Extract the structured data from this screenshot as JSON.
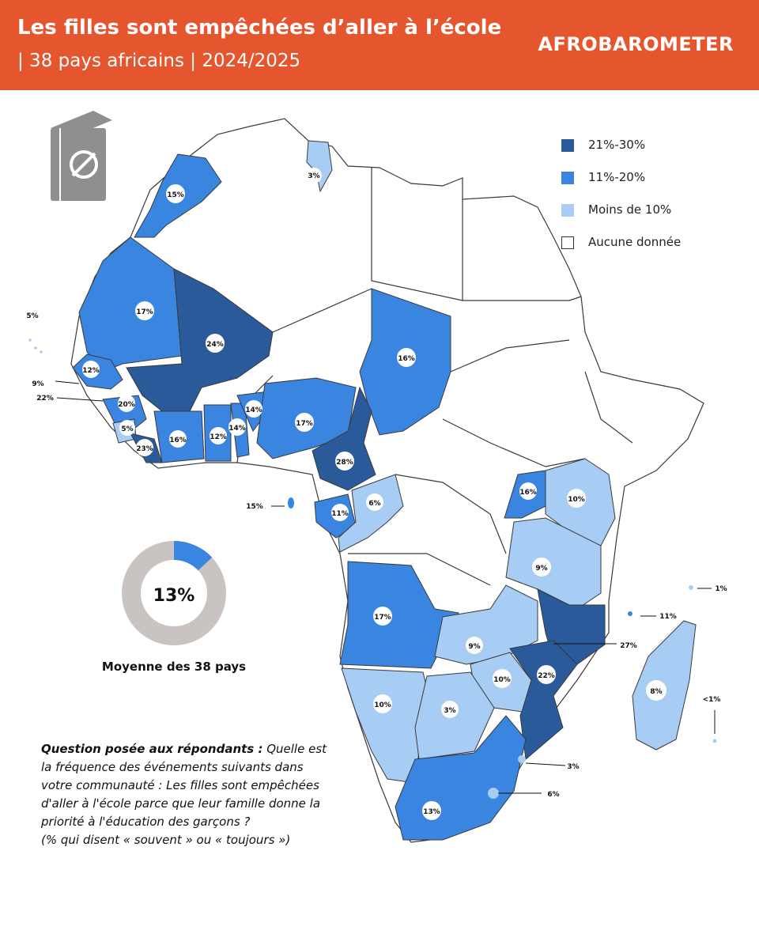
{
  "header": {
    "title": "Les filles sont empêchées d’aller à l’école",
    "subtitle": "| 38 pays africains | 2024/2025",
    "brand": "AFROBAROMETER"
  },
  "colors": {
    "header_bg": "#e6562e",
    "high": "#2a5a9a",
    "mid": "#3a85e0",
    "low": "#a7cdf5",
    "none": "#ffffff",
    "donut_rest": "#c9c3c1",
    "icon": "#8f8f8f"
  },
  "legend": {
    "items": [
      {
        "label": "21%-30%",
        "key": "high"
      },
      {
        "label": "11%-20%",
        "key": "mid"
      },
      {
        "label": "Moins de 10%",
        "key": "low"
      },
      {
        "label": "Aucune donnée",
        "key": "none"
      }
    ]
  },
  "icon": {
    "name": "book-no-entry-icon"
  },
  "average": {
    "value": 13,
    "value_label": "13%",
    "label": "Moyenne des 38 pays"
  },
  "question": {
    "lead": "Question posée aux répondants :",
    "text": "Quelle est la fréquence des événements suivants dans votre communauté : Les filles sont empêchées d'aller à l'école parce que leur famille donne la priorité à l'éducation des garçons ?",
    "footnote": "(% qui disent « souvent » ou « toujours »)"
  },
  "countries": [
    {
      "label": "15%",
      "category": "mid"
    },
    {
      "label": "3%",
      "category": "low"
    },
    {
      "label": "17%",
      "category": "mid"
    },
    {
      "label": "24%",
      "category": "high"
    },
    {
      "label": "16%",
      "category": "mid"
    },
    {
      "label": "12%",
      "category": "mid"
    },
    {
      "label": "20%",
      "category": "mid"
    },
    {
      "label": "5%",
      "category": "low"
    },
    {
      "label": "23%",
      "category": "high"
    },
    {
      "label": "16%",
      "category": "mid"
    },
    {
      "label": "12%",
      "category": "mid"
    },
    {
      "label": "14%",
      "category": "mid"
    },
    {
      "label": "14%",
      "category": "mid"
    },
    {
      "label": "17%",
      "category": "mid"
    },
    {
      "label": "28%",
      "category": "high"
    },
    {
      "label": "11%",
      "category": "mid"
    },
    {
      "label": "6%",
      "category": "low"
    },
    {
      "label": "16%",
      "category": "mid"
    },
    {
      "label": "10%",
      "category": "low"
    },
    {
      "label": "9%",
      "category": "low"
    },
    {
      "label": "17%",
      "category": "mid"
    },
    {
      "label": "9%",
      "category": "low"
    },
    {
      "label": "27%",
      "category": "high"
    },
    {
      "label": "22%",
      "category": "high"
    },
    {
      "label": "10%",
      "category": "low"
    },
    {
      "label": "10%",
      "category": "low"
    },
    {
      "label": "3%",
      "category": "low"
    },
    {
      "label": "8%",
      "category": "low"
    },
    {
      "label": "13%",
      "category": "mid"
    },
    {
      "label": "5%",
      "category": "low"
    },
    {
      "label": "9%",
      "category": "low"
    },
    {
      "label": "22%",
      "category": "high"
    },
    {
      "label": "15%",
      "category": "mid"
    },
    {
      "label": "1%",
      "category": "low"
    },
    {
      "label": "11%",
      "category": "mid"
    },
    {
      "label": "<1%",
      "category": "low"
    },
    {
      "label": "3%",
      "category": "low"
    },
    {
      "label": "6%",
      "category": "low"
    }
  ]
}
